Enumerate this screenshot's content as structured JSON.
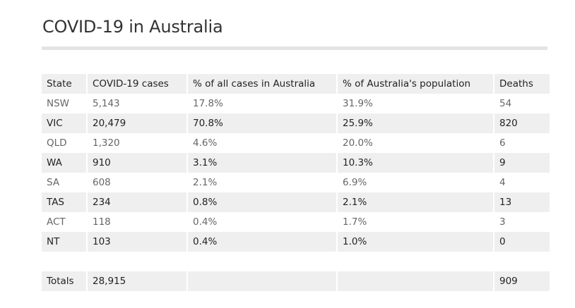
{
  "title": "COVID-19 in Australia",
  "table": {
    "headers": [
      "State",
      "COVID-19 cases",
      "% of all cases in Australia",
      "% of Australia's population",
      "Deaths"
    ],
    "rows": [
      [
        "NSW",
        "5,143",
        "17.8%",
        "31.9%",
        "54"
      ],
      [
        "VIC",
        "20,479",
        "70.8%",
        "25.9%",
        "820"
      ],
      [
        "QLD",
        "1,320",
        "4.6%",
        "20.0%",
        "6"
      ],
      [
        "WA",
        "910",
        "3.1%",
        "10.3%",
        "9"
      ],
      [
        "SA",
        "608",
        "2.1%",
        "6.9%",
        "4"
      ],
      [
        "TAS",
        "234",
        "0.8%",
        "2.1%",
        "13"
      ],
      [
        "ACT",
        "118",
        "0.4%",
        "1.7%",
        "3"
      ],
      [
        "NT",
        "103",
        "0.4%",
        "1.0%",
        "0"
      ]
    ],
    "totals": [
      "Totals",
      "28,915",
      "",
      "",
      "909"
    ]
  }
}
